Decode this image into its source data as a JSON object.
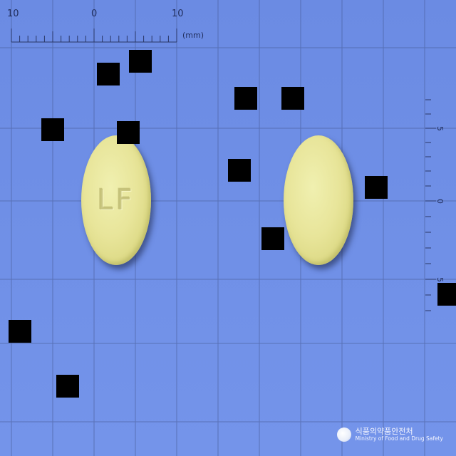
{
  "ruler": {
    "top_labels": [
      "10",
      "0",
      "10"
    ],
    "unit": "(mm)",
    "side_labels": [
      "5",
      "0",
      "5"
    ]
  },
  "pills": [
    {
      "imprint": "LF",
      "color": "#e7e49a"
    },
    {
      "imprint": "",
      "color": "#e7e49a"
    }
  ],
  "redaction_color": "#000000",
  "watermark": {
    "korean": "식품의약품안전처",
    "english": "Ministry of Food and Drug Safety"
  }
}
